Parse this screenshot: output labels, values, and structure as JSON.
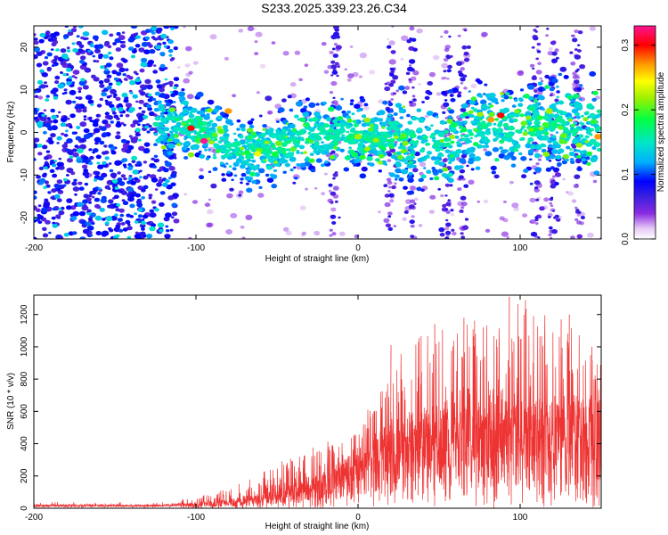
{
  "title": "S233.2025.339.23.26.C34",
  "chart_data": [
    {
      "type": "heatmap",
      "xlabel": "Height of straight line (km)",
      "ylabel": "Frequency (Hz)",
      "xlim": [
        -200,
        150
      ],
      "ylim": [
        -25,
        25
      ],
      "xticks": [
        -200,
        -100,
        0,
        100
      ],
      "yticks": [
        -20,
        -10,
        0,
        10,
        20
      ],
      "colorbar": {
        "label": "Normalized spectral amplitude",
        "range": [
          0.0,
          0.33
        ],
        "ticks": [
          0.0,
          0.1,
          0.2,
          0.3
        ],
        "tick_labels": [
          "0.0",
          "0.1",
          "0.2",
          "0.3"
        ],
        "colormap": [
          "#ffffff",
          "#e6c8f5",
          "#8a2be2",
          "#3a1fe0",
          "#0000ff",
          "#00b0ff",
          "#00e6c8",
          "#00ff44",
          "#9cf000",
          "#ffff00",
          "#ff9900",
          "#ff0000",
          "#ff1493"
        ]
      },
      "band_center_hz": [
        [
          -200,
          0
        ],
        [
          -150,
          0
        ],
        [
          -120,
          2
        ],
        [
          -100,
          1
        ],
        [
          -80,
          -3
        ],
        [
          -65,
          -5
        ],
        [
          -50,
          -3
        ],
        [
          -30,
          -1
        ],
        [
          -10,
          0
        ],
        [
          0,
          -1
        ],
        [
          20,
          -1
        ],
        [
          40,
          -3
        ],
        [
          60,
          -2
        ],
        [
          80,
          2
        ],
        [
          100,
          1
        ],
        [
          120,
          2
        ],
        [
          150,
          0
        ]
      ],
      "hotspots": [
        {
          "x": -95,
          "f": -2,
          "a": 0.33
        },
        {
          "x": -103,
          "f": 1,
          "a": 0.3
        },
        {
          "x": -80,
          "f": 5,
          "a": 0.27
        },
        {
          "x": 88,
          "f": 4,
          "a": 0.3
        },
        {
          "x": 82,
          "f": 3,
          "a": 0.27
        },
        {
          "x": 148,
          "f": -1,
          "a": 0.27
        },
        {
          "x": 118,
          "f": 5,
          "a": 0.22
        },
        {
          "x": -62,
          "f": -5,
          "a": 0.24
        },
        {
          "x": 0,
          "f": -1,
          "a": 0.22
        }
      ]
    },
    {
      "type": "line",
      "color": "#ee3333",
      "xlabel": "Height of straight line (km)",
      "ylabel": "SNR (10 * v/v)",
      "xlim": [
        -200,
        150
      ],
      "ylim": [
        0,
        1320
      ],
      "xticks": [
        -200,
        -100,
        0,
        100
      ],
      "yticks": [
        0,
        200,
        400,
        600,
        800,
        1000,
        1200
      ],
      "envelope": {
        "x": [
          -200,
          -150,
          -120,
          -100,
          -80,
          -60,
          -40,
          -20,
          0,
          10,
          20,
          30,
          40,
          60,
          80,
          100,
          120,
          150
        ],
        "median": [
          15,
          15,
          15,
          22,
          35,
          55,
          90,
          150,
          230,
          280,
          320,
          360,
          390,
          410,
          420,
          430,
          430,
          440
        ],
        "upper": [
          35,
          35,
          40,
          70,
          130,
          220,
          330,
          430,
          560,
          700,
          880,
          1000,
          1100,
          1150,
          1180,
          1310,
          1200,
          1000
        ]
      },
      "peaks": [
        {
          "x": 93,
          "y": 1310
        },
        {
          "x": 130,
          "y": 1200
        },
        {
          "x": 65,
          "y": 1180
        },
        {
          "x": 125,
          "y": 1170
        },
        {
          "x": 47,
          "y": 1140
        },
        {
          "x": 77,
          "y": 1120
        },
        {
          "x": 20,
          "y": 1010
        },
        {
          "x": 37,
          "y": 1030
        },
        {
          "x": 144,
          "y": 1000
        }
      ]
    }
  ]
}
